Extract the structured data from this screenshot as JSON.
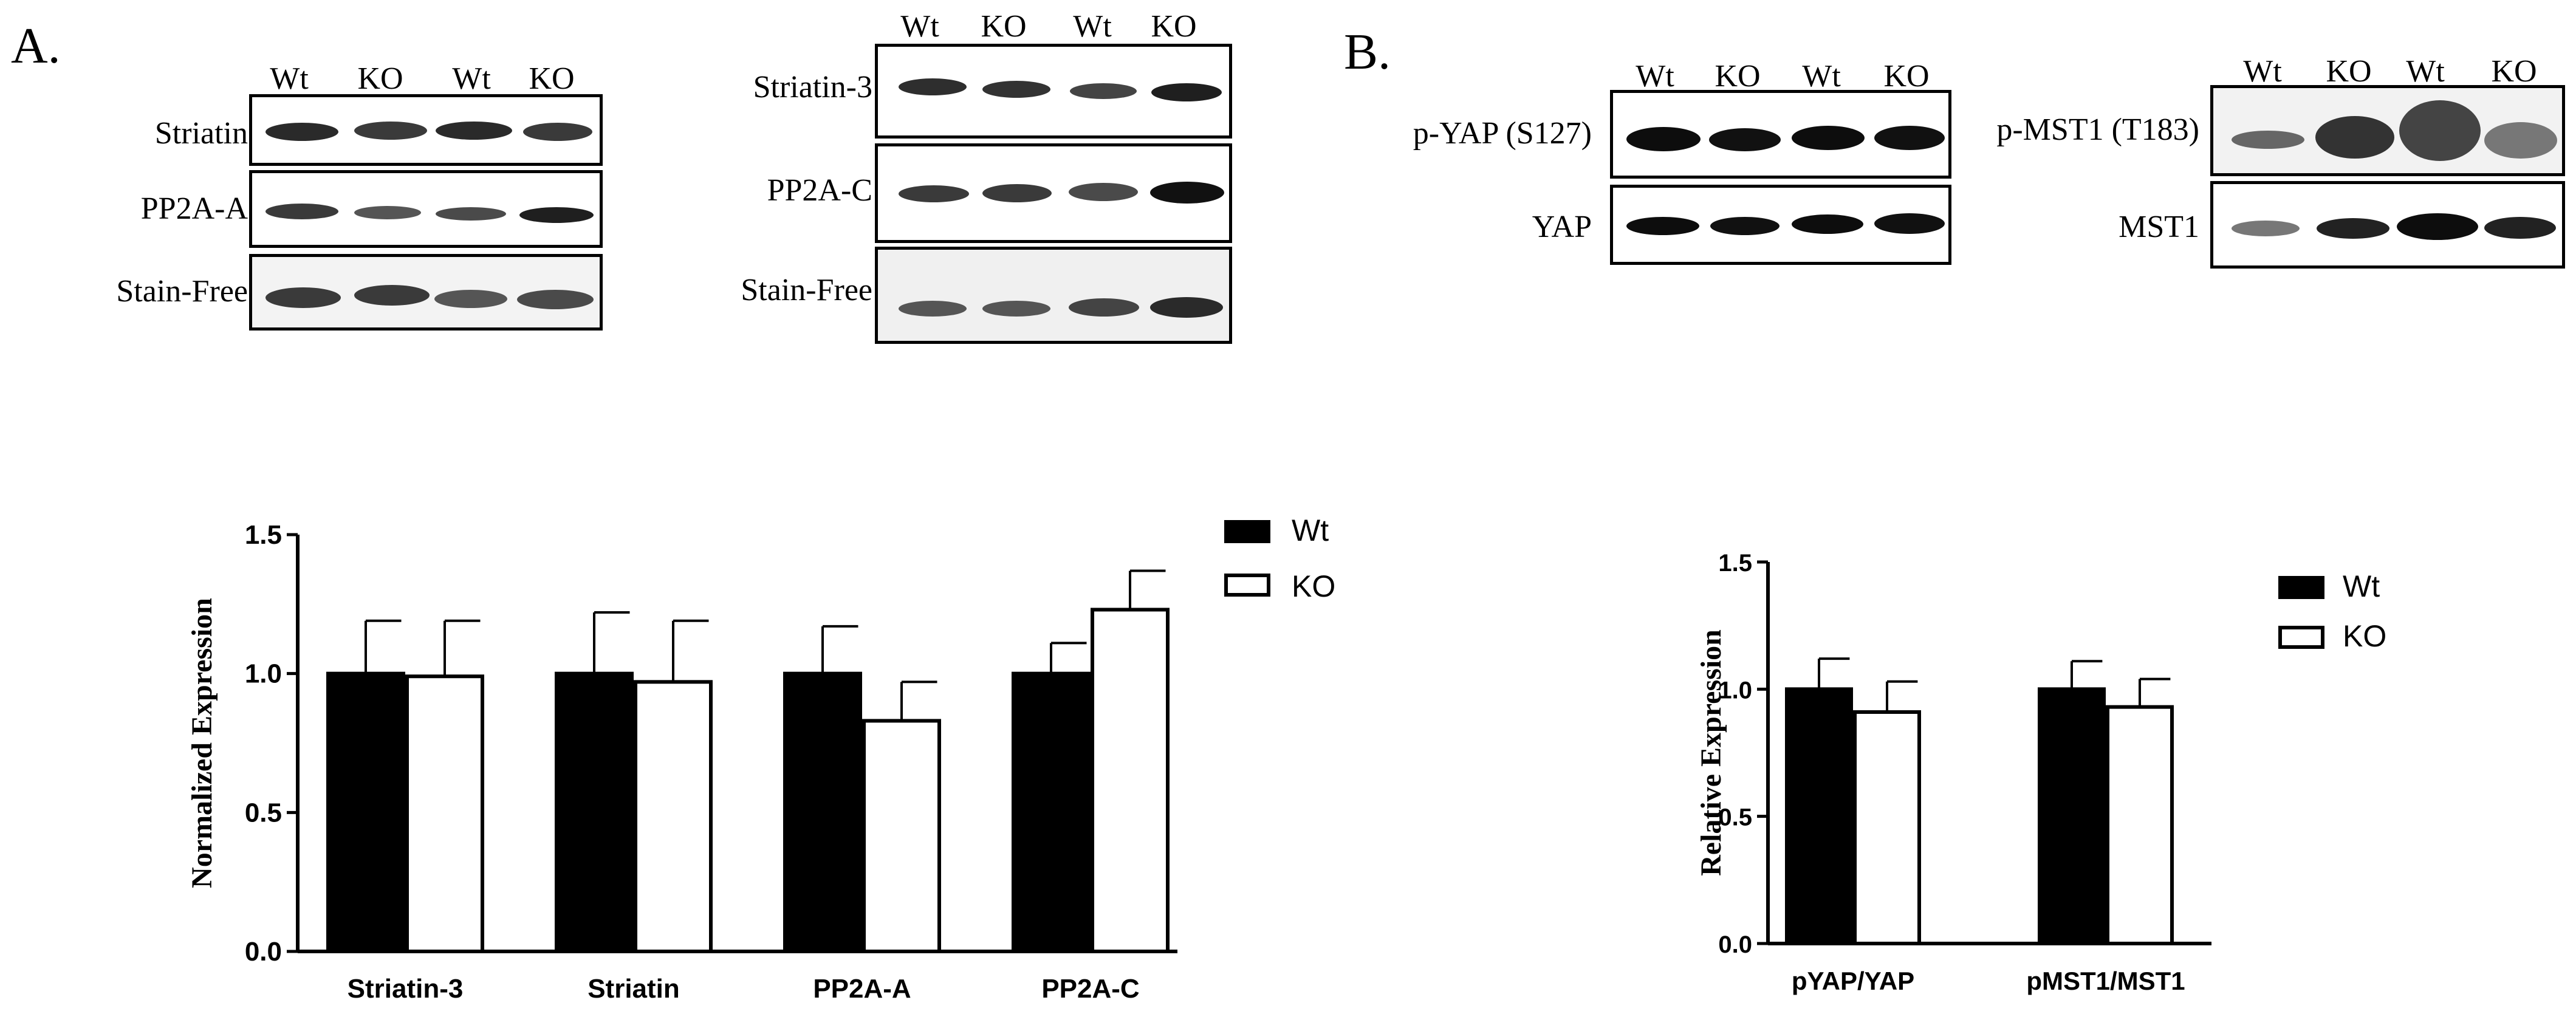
{
  "panel_a": {
    "letter": "A.",
    "blot_left": {
      "lanes": [
        "Wt",
        "KO",
        "Wt",
        "KO"
      ],
      "rows": [
        "Striatin",
        "PP2A-A",
        "Stain-Free"
      ]
    },
    "blot_right": {
      "lanes": [
        "Wt",
        "KO",
        "Wt",
        "KO"
      ],
      "rows": [
        "Striatin-3",
        "PP2A-C",
        "Stain-Free"
      ]
    }
  },
  "panel_b": {
    "letter": "B.",
    "blot_left": {
      "lanes": [
        "Wt",
        "KO",
        "Wt",
        "KO"
      ],
      "rows": [
        "p-YAP (S127)",
        "YAP"
      ]
    },
    "blot_right": {
      "lanes": [
        "Wt",
        "KO",
        "Wt",
        "KO"
      ],
      "rows": [
        "p-MST1 (T183)",
        "MST1"
      ]
    }
  },
  "legend_a": {
    "wt": "Wt",
    "ko": "KO"
  },
  "legend_b": {
    "wt": "Wt",
    "ko": "KO"
  },
  "colors": {
    "wt_fill": "#000000",
    "ko_fill": "#ffffff",
    "stroke": "#000000",
    "band": "#1a1a1a"
  },
  "chart_data": [
    {
      "type": "bar",
      "ylabel": "Normalized Expression",
      "xlabel": "",
      "ylim": [
        0,
        1.5
      ],
      "yticks": [
        "0.0",
        "0.5",
        "1.0",
        "1.5"
      ],
      "categories": [
        "Striatin-3",
        "Striatin",
        "PP2A-A",
        "PP2A-C"
      ],
      "series": [
        {
          "name": "Wt",
          "values": [
            1.0,
            1.0,
            1.0,
            1.0
          ],
          "errors": [
            0.19,
            0.22,
            0.17,
            0.11
          ]
        },
        {
          "name": "KO",
          "values": [
            0.99,
            0.97,
            0.83,
            1.23
          ],
          "errors": [
            0.2,
            0.22,
            0.14,
            0.14
          ]
        }
      ],
      "legend": "top-right"
    },
    {
      "type": "bar",
      "ylabel": "Relative Expression",
      "xlabel": "",
      "ylim": [
        0,
        1.5
      ],
      "yticks": [
        "0.0",
        "0.5",
        "1.0",
        "1.5"
      ],
      "categories": [
        "pYAP/YAP",
        "pMST1/MST1"
      ],
      "series": [
        {
          "name": "Wt",
          "values": [
            1.0,
            1.0
          ],
          "errors": [
            0.12,
            0.11
          ]
        },
        {
          "name": "KO",
          "values": [
            0.91,
            0.93
          ],
          "errors": [
            0.12,
            0.11
          ]
        }
      ],
      "legend": "top-right"
    }
  ]
}
